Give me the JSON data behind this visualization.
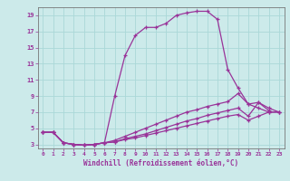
{
  "xlabel": "Windchill (Refroidissement éolien,°C)",
  "bg_color": "#cceaea",
  "line_color": "#993399",
  "grid_color": "#aad8d8",
  "xlim": [
    -0.5,
    23.5
  ],
  "ylim": [
    2.5,
    20.0
  ],
  "xticks": [
    0,
    1,
    2,
    3,
    4,
    5,
    6,
    7,
    8,
    9,
    10,
    11,
    12,
    13,
    14,
    15,
    16,
    17,
    18,
    19,
    20,
    21,
    22,
    23
  ],
  "yticks": [
    3,
    5,
    7,
    9,
    11,
    13,
    15,
    17,
    19
  ],
  "line1_x": [
    0,
    1,
    2,
    3,
    4,
    5,
    6,
    7,
    8,
    9,
    10,
    11,
    12,
    13,
    14,
    15,
    16,
    17,
    18,
    19,
    20,
    21,
    22
  ],
  "line1_y": [
    4.5,
    4.5,
    3.2,
    3.0,
    2.9,
    3.0,
    3.2,
    9.0,
    14.0,
    16.5,
    17.5,
    17.5,
    18.0,
    19.0,
    19.3,
    19.5,
    19.5,
    18.5,
    12.3,
    10.0,
    8.0,
    8.2,
    7.2
  ],
  "line2_x": [
    0,
    1,
    2,
    3,
    4,
    5,
    6,
    7,
    8,
    9,
    10,
    11,
    12,
    13,
    14,
    15,
    16,
    17,
    18,
    19,
    20,
    21,
    22,
    23
  ],
  "line2_y": [
    4.5,
    4.5,
    3.2,
    3.0,
    2.9,
    3.0,
    3.2,
    3.5,
    4.0,
    4.5,
    5.0,
    5.5,
    6.0,
    6.5,
    7.0,
    7.3,
    7.7,
    8.0,
    8.3,
    9.3,
    8.0,
    7.5,
    7.0,
    7.0
  ],
  "line3_x": [
    0,
    1,
    2,
    3,
    4,
    5,
    6,
    7,
    8,
    9,
    10,
    11,
    12,
    13,
    14,
    15,
    16,
    17,
    18,
    19,
    20,
    21,
    22,
    23
  ],
  "line3_y": [
    4.5,
    4.5,
    3.2,
    3.0,
    2.9,
    3.0,
    3.2,
    3.3,
    3.7,
    4.0,
    4.3,
    4.7,
    5.1,
    5.5,
    5.9,
    6.2,
    6.6,
    6.9,
    7.2,
    7.5,
    6.5,
    8.2,
    7.5,
    7.0
  ],
  "line4_x": [
    0,
    1,
    2,
    3,
    4,
    5,
    6,
    7,
    8,
    9,
    10,
    11,
    12,
    13,
    14,
    15,
    16,
    17,
    18,
    19,
    20,
    21,
    22,
    23
  ],
  "line4_y": [
    4.5,
    4.5,
    3.2,
    3.0,
    2.9,
    3.0,
    3.2,
    3.3,
    3.6,
    3.8,
    4.1,
    4.4,
    4.7,
    5.0,
    5.3,
    5.6,
    5.9,
    6.2,
    6.5,
    6.7,
    6.0,
    6.5,
    7.0,
    7.0
  ]
}
